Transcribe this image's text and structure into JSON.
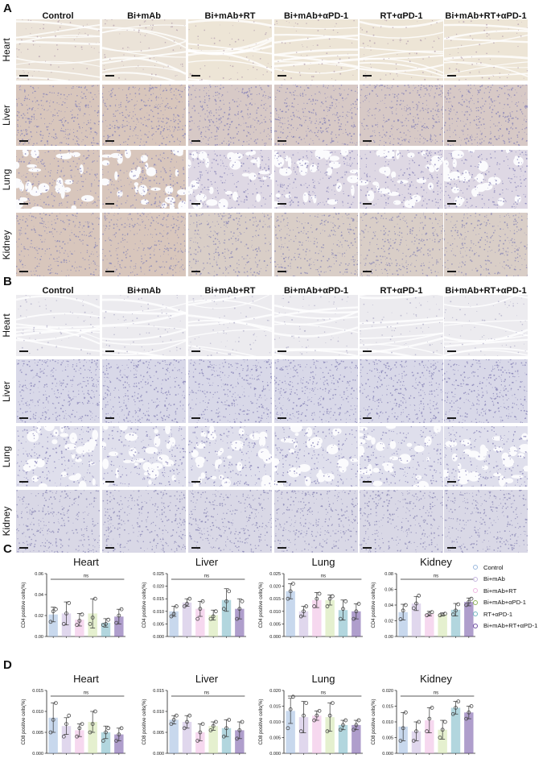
{
  "panels": {
    "A": "A",
    "B": "B",
    "C": "C",
    "D": "D"
  },
  "columns": [
    "Control",
    "Bi+mAb",
    "Bi+mAb+RT",
    "Bi+mAb+αPD-1",
    "RT+αPD-1",
    "Bi+mAb+RT+αPD-1"
  ],
  "organs": [
    "Heart",
    "Liver",
    "Lung",
    "Kidney"
  ],
  "legend": {
    "items": [
      {
        "label": "Control",
        "color": "#9ab8de"
      },
      {
        "label": "Bi+mAb",
        "color": "#c6b6de"
      },
      {
        "label": "Bi+mAb+RT",
        "color": "#efb8e2"
      },
      {
        "label": "Bi+mAb+αPD-1",
        "color": "#cfe3a8"
      },
      {
        "label": "RT+αPD-1",
        "color": "#73b5c2"
      },
      {
        "label": "Bi+mAb+RT+αPD-1",
        "color": "#6e4fa2"
      }
    ]
  },
  "colors": {
    "point_stroke": "#4a4a4a",
    "stain_A_tint": "#c9a97a",
    "stain_B_tint": "#b6b8d6"
  },
  "chart_data": [
    {
      "type": "bar",
      "panel": "C",
      "title": "Heart",
      "ylabel": "CD4 positive cells(%)",
      "sig": "ns",
      "ylim": [
        0,
        0.06
      ],
      "yticks": [
        0,
        0.02,
        0.04,
        0.06
      ],
      "tick_labels": [
        "0.00",
        "0.02",
        "0.04",
        "0.06"
      ],
      "categories": [
        "Control",
        "Bi+mAb",
        "Bi+mAb+RT",
        "Bi+mAb+αPD-1",
        "RT+αPD-1",
        "Bi+mAb+RT+αPD-1"
      ],
      "values": [
        0.021,
        0.022,
        0.016,
        0.022,
        0.013,
        0.019
      ],
      "errors": [
        0.007,
        0.011,
        0.006,
        0.014,
        0.004,
        0.007
      ],
      "points": [
        [
          0.014,
          0.024,
          0.026
        ],
        [
          0.012,
          0.022,
          0.032
        ],
        [
          0.011,
          0.015,
          0.021
        ],
        [
          0.012,
          0.018,
          0.036
        ],
        [
          0.011,
          0.012,
          0.016
        ],
        [
          0.013,
          0.02,
          0.026
        ]
      ]
    },
    {
      "type": "bar",
      "panel": "C",
      "title": "Liver",
      "ylabel": "CD4 positive cells(%)",
      "sig": "ns",
      "ylim": [
        0,
        0.025
      ],
      "yticks": [
        0,
        0.005,
        0.01,
        0.015,
        0.02,
        0.025
      ],
      "tick_labels": [
        "0.000",
        "0.005",
        "0.010",
        "0.015",
        "0.020",
        "0.025"
      ],
      "categories": [
        "Control",
        "Bi+mAb",
        "Bi+mAb+RT",
        "Bi+mAb+αPD-1",
        "RT+αPD-1",
        "Bi+mAb+RT+αPD-1"
      ],
      "values": [
        0.01,
        0.0135,
        0.011,
        0.0085,
        0.0145,
        0.011
      ],
      "errors": [
        0.002,
        0.0015,
        0.003,
        0.002,
        0.0045,
        0.004
      ],
      "points": [
        [
          0.008,
          0.009,
          0.012
        ],
        [
          0.012,
          0.013,
          0.015
        ],
        [
          0.007,
          0.011,
          0.014
        ],
        [
          0.007,
          0.008,
          0.01
        ],
        [
          0.011,
          0.014,
          0.018
        ],
        [
          0.007,
          0.011,
          0.014
        ]
      ]
    },
    {
      "type": "bar",
      "panel": "C",
      "title": "Lung",
      "ylabel": "CD4 positive cells(%)",
      "sig": "ns",
      "ylim": [
        0,
        0.025
      ],
      "yticks": [
        0,
        0.005,
        0.01,
        0.015,
        0.02,
        0.025
      ],
      "tick_labels": [
        "0.000",
        "0.005",
        "0.010",
        "0.015",
        "0.020",
        "0.025"
      ],
      "categories": [
        "Control",
        "Bi+mAb",
        "Bi+mAb+RT",
        "Bi+mAb+αPD-1",
        "RT+αPD-1",
        "Bi+mAb+RT+αPD-1"
      ],
      "values": [
        0.018,
        0.01,
        0.0145,
        0.0145,
        0.0105,
        0.01
      ],
      "errors": [
        0.003,
        0.002,
        0.003,
        0.002,
        0.004,
        0.003
      ],
      "points": [
        [
          0.015,
          0.018,
          0.021
        ],
        [
          0.008,
          0.01,
          0.012
        ],
        [
          0.012,
          0.015,
          0.017
        ],
        [
          0.012,
          0.015,
          0.016
        ],
        [
          0.007,
          0.011,
          0.014
        ],
        [
          0.007,
          0.01,
          0.013
        ]
      ]
    },
    {
      "type": "bar",
      "panel": "C",
      "title": "Kidney",
      "ylabel": "CD4 positive cells(%)",
      "sig": "ns",
      "ylim": [
        0,
        0.08
      ],
      "yticks": [
        0,
        0.02,
        0.04,
        0.06,
        0.08
      ],
      "tick_labels": [
        "0.00",
        "0.02",
        "0.04",
        "0.06",
        "0.08"
      ],
      "categories": [
        "Control",
        "Bi+mAb",
        "Bi+mAb+RT",
        "Bi+mAb+αPD-1",
        "RT+αPD-1",
        "Bi+mAb+RT+αPD-1"
      ],
      "values": [
        0.031,
        0.042,
        0.029,
        0.028,
        0.034,
        0.044
      ],
      "errors": [
        0.01,
        0.009,
        0.003,
        0.002,
        0.008,
        0.005
      ],
      "points": [
        [
          0.022,
          0.033,
          0.04
        ],
        [
          0.036,
          0.042,
          0.052
        ],
        [
          0.027,
          0.029,
          0.031
        ],
        [
          0.027,
          0.028,
          0.029
        ],
        [
          0.028,
          0.033,
          0.041
        ],
        [
          0.04,
          0.044,
          0.048
        ]
      ]
    },
    {
      "type": "bar",
      "panel": "D",
      "title": "Heart",
      "ylabel": "CD8 positive cells(%)",
      "sig": "ns",
      "ylim": [
        0,
        0.015
      ],
      "yticks": [
        0,
        0.005,
        0.01,
        0.015
      ],
      "tick_labels": [
        "0.000",
        "0.005",
        "0.010",
        "0.015"
      ],
      "categories": [
        "Control",
        "Bi+mAb",
        "Bi+mAb+RT",
        "Bi+mAb+αPD-1",
        "RT+αPD-1",
        "Bi+mAb+RT+αPD-1"
      ],
      "values": [
        0.0085,
        0.0065,
        0.0055,
        0.0075,
        0.005,
        0.0045
      ],
      "errors": [
        0.0035,
        0.002,
        0.0015,
        0.0025,
        0.0015,
        0.0015
      ],
      "points": [
        [
          0.005,
          0.008,
          0.012
        ],
        [
          0.004,
          0.007,
          0.009
        ],
        [
          0.004,
          0.006,
          0.007
        ],
        [
          0.005,
          0.007,
          0.01
        ],
        [
          0.003,
          0.005,
          0.006
        ],
        [
          0.003,
          0.0045,
          0.006
        ]
      ]
    },
    {
      "type": "bar",
      "panel": "D",
      "title": "Liver",
      "ylabel": "CD8 positive cells(%)",
      "sig": "ns",
      "ylim": [
        0,
        0.015
      ],
      "yticks": [
        0,
        0.005,
        0.01,
        0.015
      ],
      "tick_labels": [
        "0.000",
        "0.005",
        "0.010",
        "0.015"
      ],
      "categories": [
        "Control",
        "Bi+mAb",
        "Bi+mAb+RT",
        "Bi+mAb+αPD-1",
        "RT+αPD-1",
        "Bi+mAb+RT+αPD-1"
      ],
      "values": [
        0.008,
        0.0075,
        0.005,
        0.0065,
        0.006,
        0.0055
      ],
      "errors": [
        0.001,
        0.0015,
        0.002,
        0.001,
        0.002,
        0.002
      ],
      "points": [
        [
          0.007,
          0.008,
          0.009
        ],
        [
          0.006,
          0.0075,
          0.009
        ],
        [
          0.003,
          0.005,
          0.007
        ],
        [
          0.0055,
          0.0065,
          0.0075
        ],
        [
          0.004,
          0.006,
          0.008
        ],
        [
          0.0035,
          0.0055,
          0.0075
        ]
      ]
    },
    {
      "type": "bar",
      "panel": "D",
      "title": "Lung",
      "ylabel": "CD8 positive cells(%)",
      "sig": "ns",
      "ylim": [
        0,
        0.02
      ],
      "yticks": [
        0,
        0.005,
        0.01,
        0.015,
        0.02
      ],
      "tick_labels": [
        "0.000",
        "0.005",
        "0.010",
        "0.015",
        "0.020"
      ],
      "categories": [
        "Control",
        "Bi+mAb",
        "Bi+mAb+RT",
        "Bi+mAb+αPD-1",
        "RT+αPD-1",
        "Bi+mAb+RT+αPD-1"
      ],
      "values": [
        0.0135,
        0.0115,
        0.012,
        0.0115,
        0.009,
        0.009
      ],
      "errors": [
        0.004,
        0.005,
        0.0015,
        0.0045,
        0.0015,
        0.0015
      ],
      "points": [
        [
          0.008,
          0.014,
          0.018
        ],
        [
          0.007,
          0.012,
          0.016
        ],
        [
          0.0105,
          0.012,
          0.0135
        ],
        [
          0.007,
          0.012,
          0.016
        ],
        [
          0.0075,
          0.009,
          0.0105
        ],
        [
          0.0075,
          0.009,
          0.0105
        ]
      ]
    },
    {
      "type": "bar",
      "panel": "D",
      "title": "Kidney",
      "ylabel": "CD8 positive cells(%)",
      "sig": "ns",
      "ylim": [
        0,
        0.02
      ],
      "yticks": [
        0,
        0.005,
        0.01,
        0.015,
        0.02
      ],
      "tick_labels": [
        "0.000",
        "0.005",
        "0.010",
        "0.015",
        "0.020"
      ],
      "categories": [
        "Control",
        "Bi+mAb",
        "Bi+mAb+RT",
        "Bi+mAb+αPD-1",
        "RT+αPD-1",
        "Bi+mAb+RT+αPD-1"
      ],
      "values": [
        0.0085,
        0.007,
        0.0105,
        0.0075,
        0.0145,
        0.013
      ],
      "errors": [
        0.0045,
        0.003,
        0.004,
        0.003,
        0.002,
        0.002
      ],
      "points": [
        [
          0.004,
          0.008,
          0.013
        ],
        [
          0.004,
          0.007,
          0.01
        ],
        [
          0.007,
          0.011,
          0.0145
        ],
        [
          0.005,
          0.0075,
          0.01
        ],
        [
          0.0125,
          0.0145,
          0.0165
        ],
        [
          0.011,
          0.013,
          0.015
        ]
      ]
    }
  ]
}
